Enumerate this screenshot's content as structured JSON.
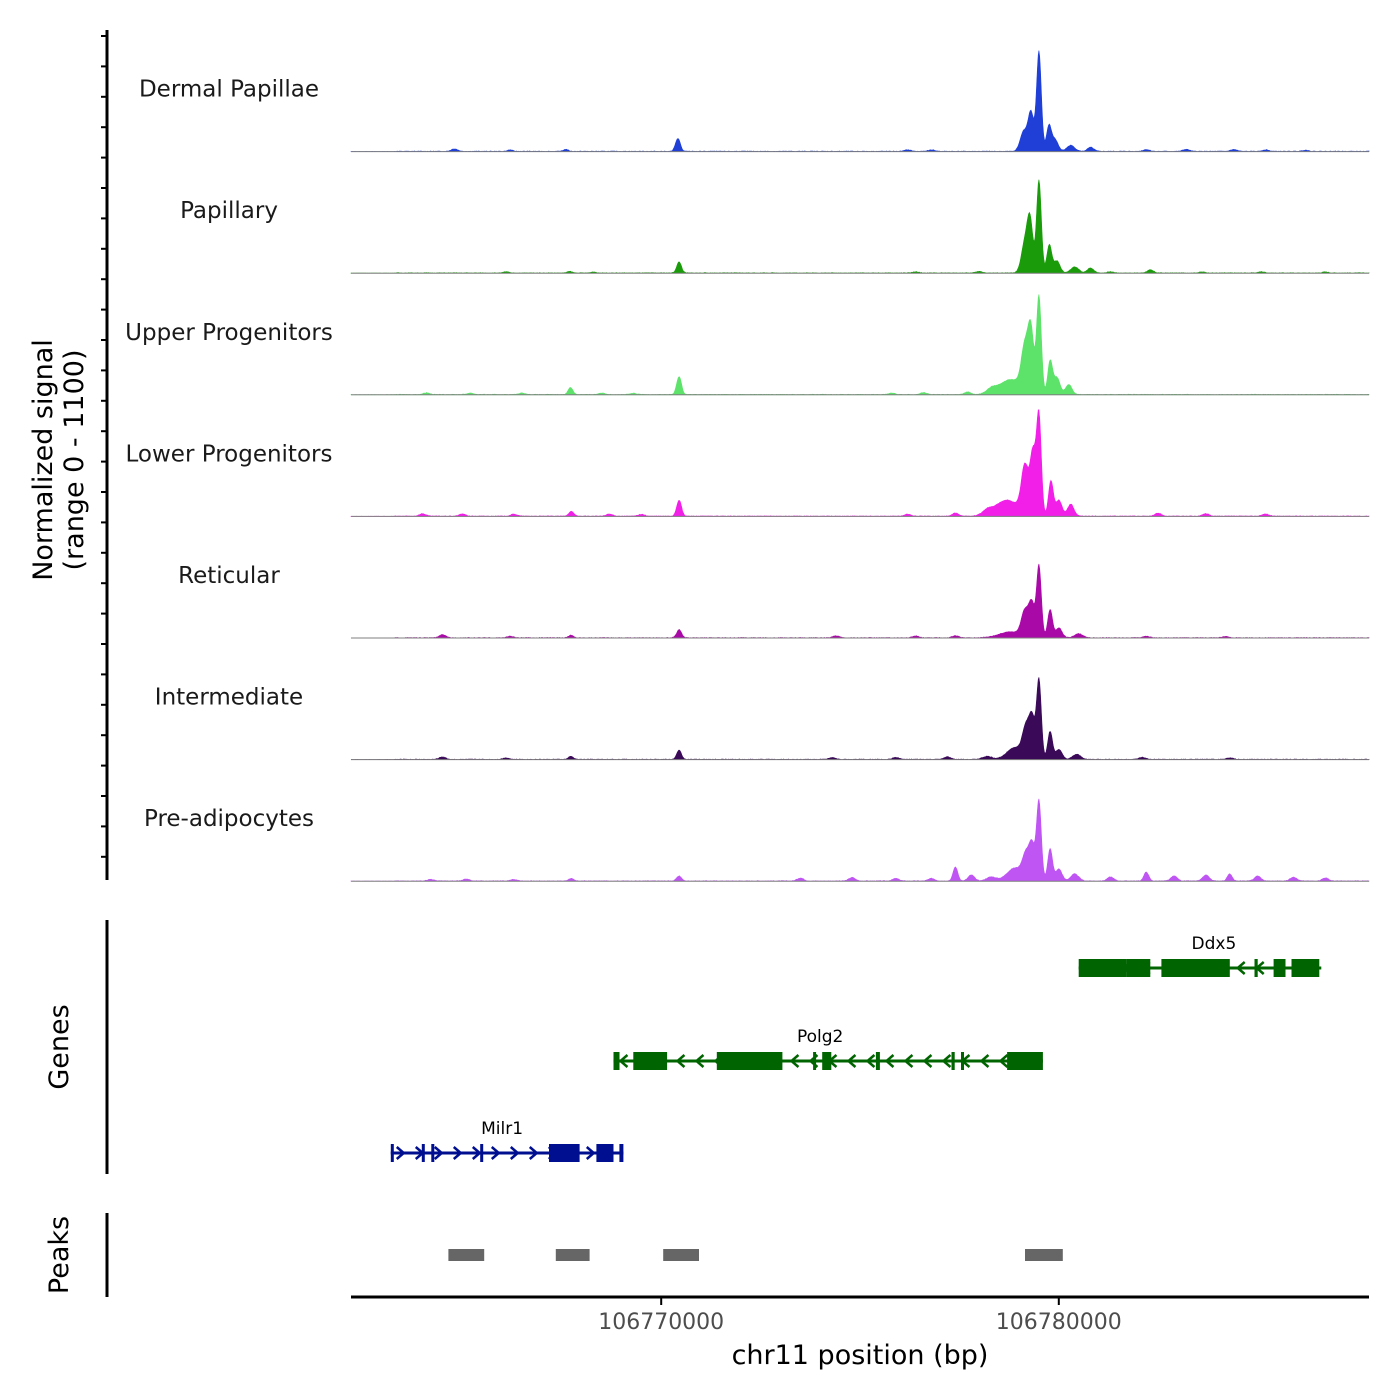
{
  "chart_data": {
    "type": "coverage-tracks",
    "x_axis": {
      "label": "chr11 position (bp)",
      "range": [
        106762200,
        106787800
      ],
      "ticks": [
        106770000,
        106780000
      ],
      "tick_labels": [
        "106770000",
        "106780000"
      ]
    },
    "signal_axis_label": {
      "line1": "Normalized signal",
      "line2": "(range 0 - 1100)"
    },
    "signal_range": [
      0,
      1100
    ],
    "tracks": [
      {
        "name": "Dermal Papillae",
        "color": "#1f3fd6",
        "bg_peaks": [
          [
            106764800,
            25,
            80
          ],
          [
            106766200,
            15,
            60
          ],
          [
            106767600,
            20,
            60
          ],
          [
            106776200,
            15,
            80
          ],
          [
            106776800,
            15,
            80
          ],
          [
            106782200,
            18,
            80
          ],
          [
            106783200,
            20,
            80
          ],
          [
            106784400,
            18,
            80
          ],
          [
            106785200,
            15,
            80
          ],
          [
            106786200,
            12,
            80
          ]
        ],
        "peaks": [
          [
            106770420,
            130,
            60
          ],
          [
            106779120,
            200,
            90
          ],
          [
            106779300,
            380,
            70
          ],
          [
            106779500,
            1000,
            60
          ],
          [
            106779750,
            250,
            60
          ],
          [
            106779900,
            120,
            80
          ],
          [
            106780300,
            60,
            100
          ],
          [
            106780800,
            40,
            80
          ]
        ]
      },
      {
        "name": "Papillary",
        "color": "#1a9c0a",
        "bg_peaks": [
          [
            106766100,
            12,
            60
          ],
          [
            106767700,
            15,
            60
          ],
          [
            106768300,
            10,
            60
          ],
          [
            106776400,
            10,
            80
          ],
          [
            106778000,
            15,
            80
          ],
          [
            106781300,
            12,
            80
          ],
          [
            106782300,
            30,
            80
          ],
          [
            106783600,
            10,
            80
          ],
          [
            106785100,
            12,
            80
          ],
          [
            106786700,
            10,
            80
          ]
        ],
        "peaks": [
          [
            106770450,
            110,
            60
          ],
          [
            106779150,
            300,
            90
          ],
          [
            106779280,
            480,
            70
          ],
          [
            106779500,
            930,
            60
          ],
          [
            106779760,
            280,
            60
          ],
          [
            106779950,
            120,
            80
          ],
          [
            106780400,
            60,
            100
          ],
          [
            106780800,
            50,
            80
          ]
        ]
      },
      {
        "name": "Upper Progenitors",
        "color": "#5de26a",
        "bg_peaks": [
          [
            106764100,
            18,
            80
          ],
          [
            106765200,
            15,
            80
          ],
          [
            106766500,
            15,
            80
          ],
          [
            106767720,
            70,
            60
          ],
          [
            106768500,
            15,
            80
          ],
          [
            106769300,
            12,
            80
          ],
          [
            106775800,
            15,
            80
          ],
          [
            106776600,
            20,
            80
          ],
          [
            106777700,
            25,
            80
          ],
          [
            106778300,
            40,
            120
          ]
        ],
        "peaks": [
          [
            106770450,
            180,
            60
          ],
          [
            106778800,
            150,
            300
          ],
          [
            106779150,
            430,
            90
          ],
          [
            106779300,
            580,
            70
          ],
          [
            106779500,
            980,
            60
          ],
          [
            106779780,
            330,
            60
          ],
          [
            106779950,
            170,
            80
          ],
          [
            106780250,
            100,
            80
          ]
        ]
      },
      {
        "name": "Lower Progenitors",
        "color": "#f11fe8",
        "bg_peaks": [
          [
            106764000,
            25,
            80
          ],
          [
            106765000,
            22,
            80
          ],
          [
            106766300,
            20,
            80
          ],
          [
            106767740,
            50,
            60
          ],
          [
            106768700,
            20,
            80
          ],
          [
            106769500,
            18,
            80
          ],
          [
            106776200,
            20,
            80
          ],
          [
            106777400,
            30,
            80
          ],
          [
            106778200,
            40,
            120
          ],
          [
            106782500,
            30,
            80
          ],
          [
            106783700,
            25,
            80
          ],
          [
            106785200,
            22,
            80
          ]
        ],
        "peaks": [
          [
            106770450,
            160,
            60
          ],
          [
            106778700,
            160,
            300
          ],
          [
            106779150,
            470,
            90
          ],
          [
            106779350,
            600,
            70
          ],
          [
            106779500,
            1000,
            60
          ],
          [
            106779800,
            350,
            60
          ],
          [
            106780000,
            160,
            80
          ],
          [
            106780300,
            120,
            80
          ]
        ]
      },
      {
        "name": "Reticular",
        "color": "#a90aa7",
        "bg_peaks": [
          [
            106764500,
            30,
            80
          ],
          [
            106766200,
            15,
            80
          ],
          [
            106767730,
            25,
            60
          ],
          [
            106774400,
            20,
            80
          ],
          [
            106776400,
            18,
            80
          ],
          [
            106777400,
            20,
            80
          ],
          [
            106782200,
            15,
            80
          ],
          [
            106784200,
            12,
            80
          ]
        ],
        "peaks": [
          [
            106770450,
            80,
            60
          ],
          [
            106778800,
            60,
            300
          ],
          [
            106779150,
            250,
            90
          ],
          [
            106779320,
            320,
            70
          ],
          [
            106779500,
            720,
            60
          ],
          [
            106779780,
            280,
            60
          ],
          [
            106780000,
            100,
            80
          ],
          [
            106780500,
            40,
            100
          ]
        ]
      },
      {
        "name": "Intermediate",
        "color": "#3a0a58",
        "bg_peaks": [
          [
            106764500,
            25,
            80
          ],
          [
            106766100,
            15,
            80
          ],
          [
            106767730,
            30,
            60
          ],
          [
            106774300,
            20,
            80
          ],
          [
            106775900,
            20,
            80
          ],
          [
            106777200,
            25,
            80
          ],
          [
            106778200,
            30,
            120
          ],
          [
            106782100,
            20,
            80
          ],
          [
            106784300,
            15,
            80
          ]
        ],
        "peaks": [
          [
            106770450,
            90,
            60
          ],
          [
            106778900,
            120,
            200
          ],
          [
            106779180,
            300,
            90
          ],
          [
            106779330,
            370,
            70
          ],
          [
            106779500,
            800,
            60
          ],
          [
            106779780,
            280,
            60
          ],
          [
            106780000,
            100,
            80
          ],
          [
            106780450,
            50,
            100
          ]
        ]
      },
      {
        "name": "Pre-adipocytes",
        "color": "#bf55f3",
        "bg_peaks": [
          [
            106764200,
            15,
            80
          ],
          [
            106765100,
            18,
            80
          ],
          [
            106766300,
            15,
            80
          ],
          [
            106767730,
            25,
            60
          ],
          [
            106773500,
            30,
            80
          ],
          [
            106774800,
            35,
            80
          ],
          [
            106775900,
            25,
            80
          ],
          [
            106776800,
            25,
            80
          ],
          [
            106777400,
            140,
            60
          ],
          [
            106777800,
            60,
            80
          ],
          [
            106778300,
            40,
            120
          ],
          [
            106781300,
            40,
            80
          ],
          [
            106782200,
            90,
            60
          ],
          [
            106782900,
            50,
            80
          ],
          [
            106783700,
            60,
            80
          ],
          [
            106784300,
            70,
            60
          ],
          [
            106785000,
            50,
            80
          ],
          [
            106785900,
            40,
            80
          ],
          [
            106786700,
            30,
            80
          ]
        ],
        "peaks": [
          [
            106770450,
            50,
            60
          ],
          [
            106778900,
            130,
            200
          ],
          [
            106779180,
            240,
            90
          ],
          [
            106779330,
            320,
            70
          ],
          [
            106779500,
            800,
            60
          ],
          [
            106779780,
            320,
            60
          ],
          [
            106780000,
            120,
            80
          ],
          [
            106780400,
            70,
            100
          ]
        ]
      }
    ],
    "genes_label": "Genes",
    "genes": [
      {
        "name": "Milr1",
        "strand": "+",
        "color": "#000f8f",
        "row": 3,
        "start": 106763200,
        "end": 106769050,
        "exons": [
          [
            106763200,
            106763250
          ],
          [
            106763980,
            106764040
          ],
          [
            106764220,
            106764270
          ],
          [
            106765450,
            106765500
          ],
          [
            106767180,
            106767950
          ],
          [
            106768370,
            106768800
          ],
          [
            106768950,
            106769050
          ]
        ],
        "label_pos": 106766000
      },
      {
        "name": "Polg2",
        "strand": "-",
        "color": "#006400",
        "row": 2,
        "start": 106768800,
        "end": 106779600,
        "exons": [
          [
            106768800,
            106768950
          ],
          [
            106769300,
            106770150
          ],
          [
            106771400,
            106773050
          ],
          [
            106773820,
            106773890
          ],
          [
            106774050,
            106774280
          ],
          [
            106775400,
            106775500
          ],
          [
            106777300,
            106777380
          ],
          [
            106777540,
            106777610
          ],
          [
            106778700,
            106779600
          ]
        ],
        "label_pos": 106774000
      },
      {
        "name": "Ddx5",
        "strand": "-",
        "color": "#006400",
        "row": 1,
        "start": 106780500,
        "end": 106786600,
        "exons": [
          [
            106780500,
            106781700
          ],
          [
            106781700,
            106782300
          ],
          [
            106782580,
            106784300
          ],
          [
            106784920,
            106785000
          ],
          [
            106785400,
            106785700
          ],
          [
            106785850,
            106786550
          ]
        ],
        "label_pos": 106783900
      }
    ],
    "peaks_label": "Peaks",
    "peak_regions": [
      [
        106764650,
        106765550
      ],
      [
        106767350,
        106768200
      ],
      [
        106770050,
        106770950
      ],
      [
        106779150,
        106780100
      ]
    ]
  }
}
